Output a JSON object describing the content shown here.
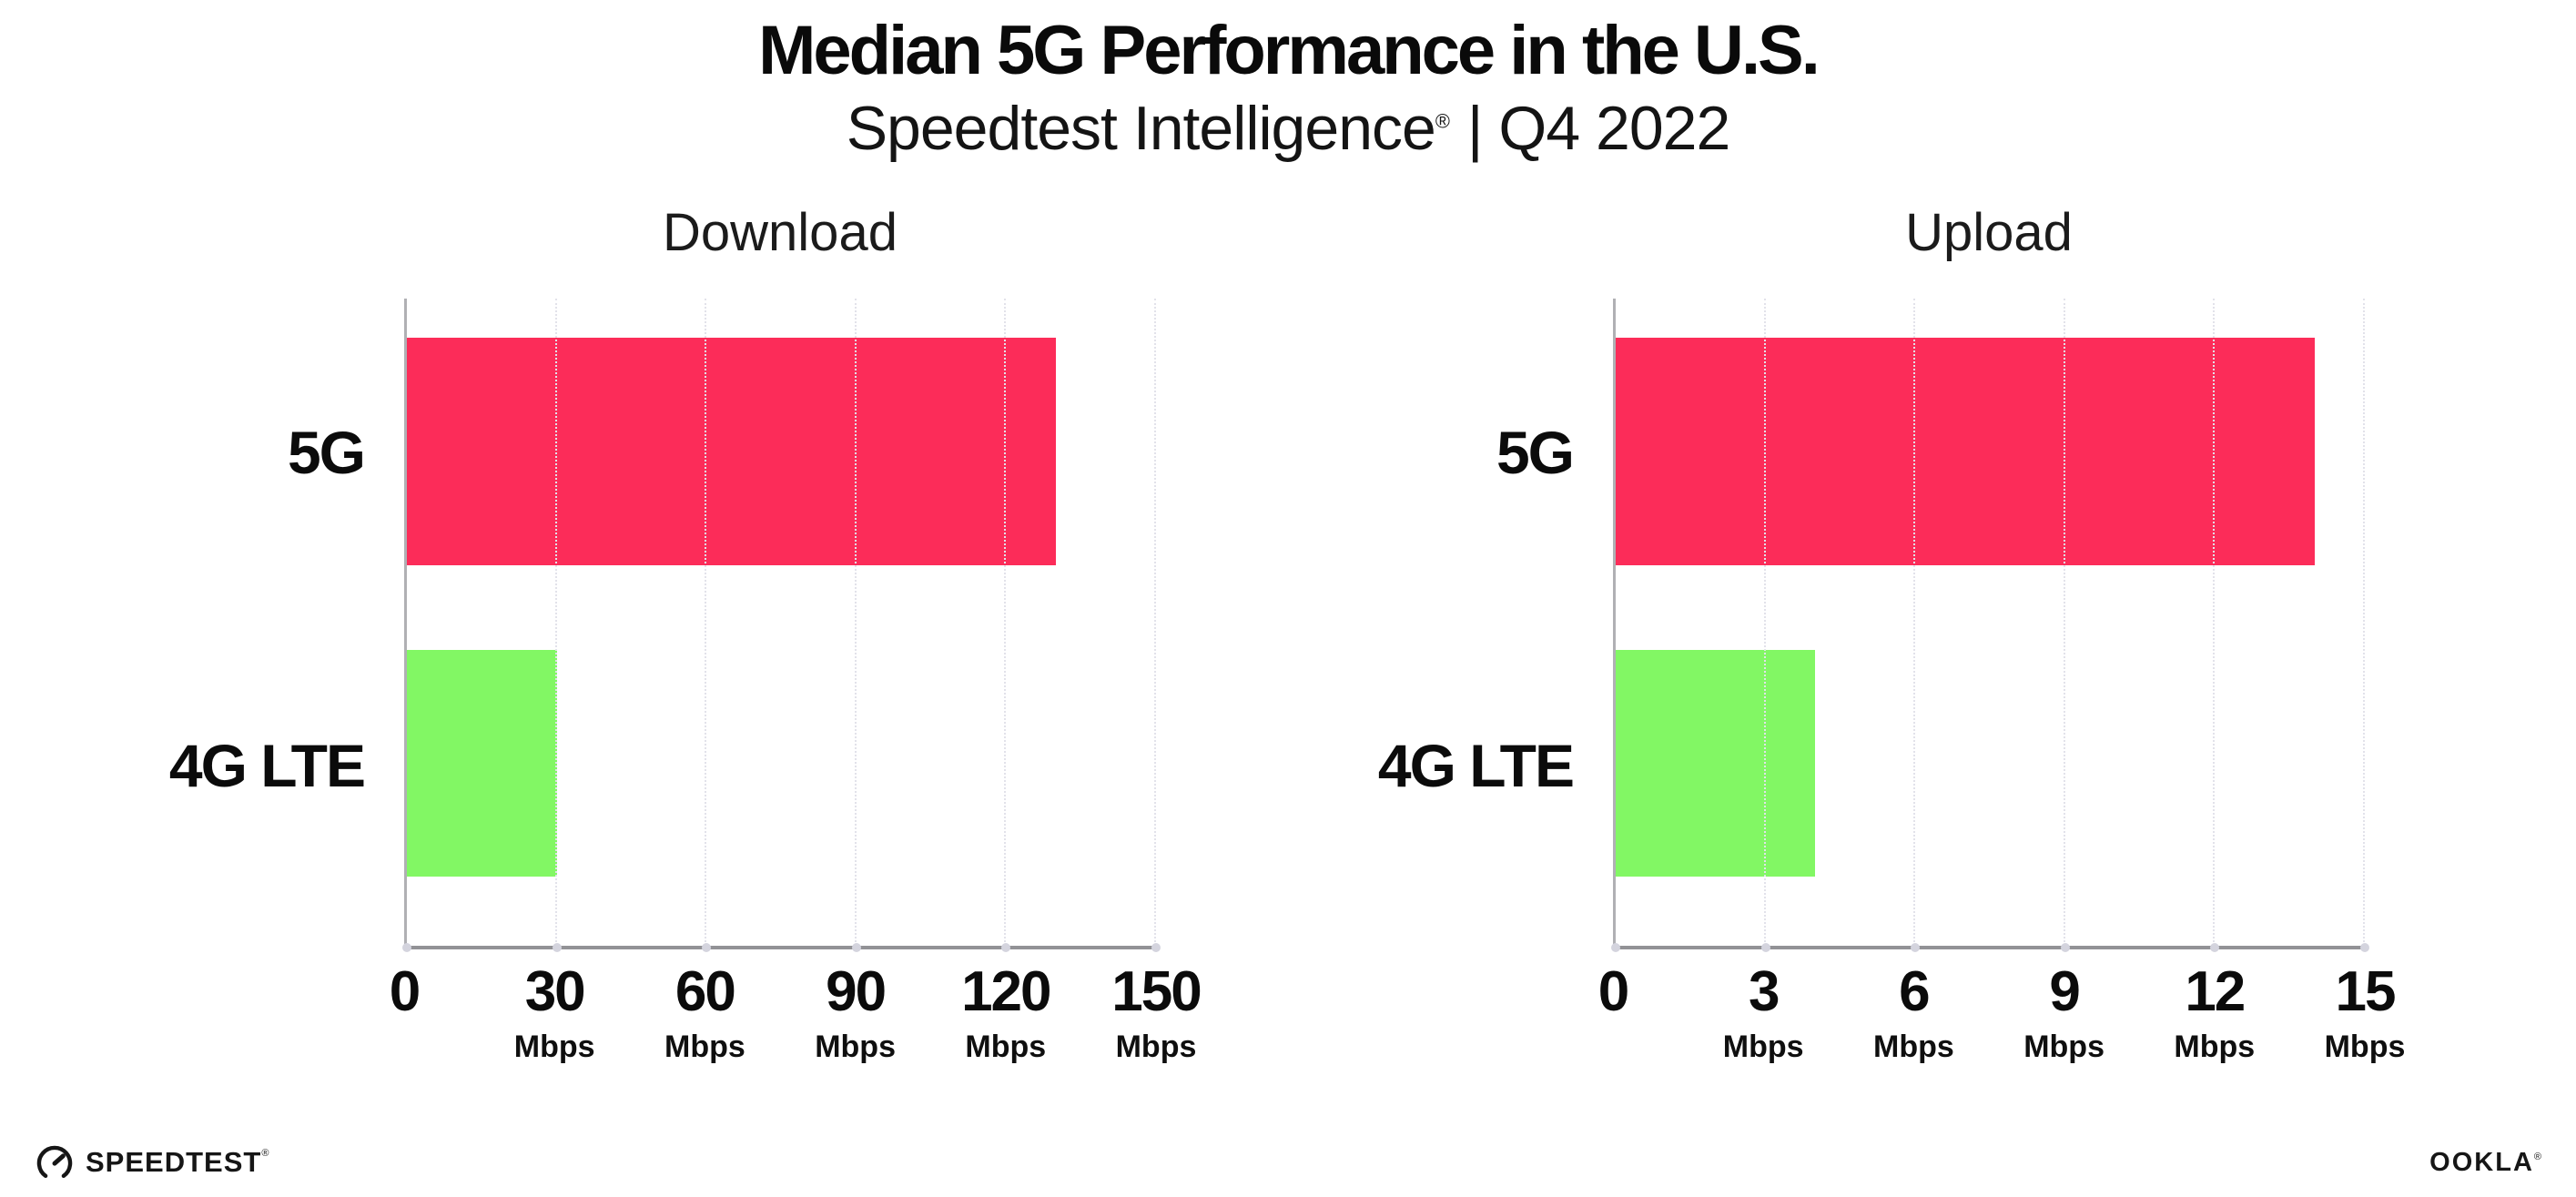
{
  "header": {
    "title": "Median 5G Performance in the U.S.",
    "subtitle_brand": "Speedtest Intelligence",
    "subtitle_mark": "®",
    "subtitle_rest": "| Q4 2022"
  },
  "chart_data": [
    {
      "type": "bar",
      "orientation": "horizontal",
      "title": "Download",
      "categories": [
        "5G",
        "4G LTE"
      ],
      "values": [
        130,
        30
      ],
      "unit": "Mbps",
      "xlim": [
        0,
        150
      ],
      "xticks": [
        0,
        30,
        60,
        90,
        120,
        150
      ],
      "bar_colors": [
        "#FC2C59",
        "#82F764"
      ],
      "grid": "dotted-vertical",
      "legend": "none"
    },
    {
      "type": "bar",
      "orientation": "horizontal",
      "title": "Upload",
      "categories": [
        "5G",
        "4G LTE"
      ],
      "values": [
        14,
        4
      ],
      "unit": "Mbps",
      "xlim": [
        0,
        15
      ],
      "xticks": [
        0,
        3,
        6,
        9,
        12,
        15
      ],
      "bar_colors": [
        "#FC2C59",
        "#82F764"
      ],
      "grid": "dotted-vertical",
      "legend": "none"
    }
  ],
  "footer": {
    "speedtest_label": "SPEEDTEST",
    "speedtest_mark": "®",
    "ookla_label": "OOKLA",
    "ookla_mark": "®"
  },
  "colors": {
    "bar_5g": "#FC2C59",
    "bar_4g_lte": "#82F764",
    "axis_line": "#929296",
    "gridline": "#e2e2ea",
    "text": "#0d0d0d"
  }
}
